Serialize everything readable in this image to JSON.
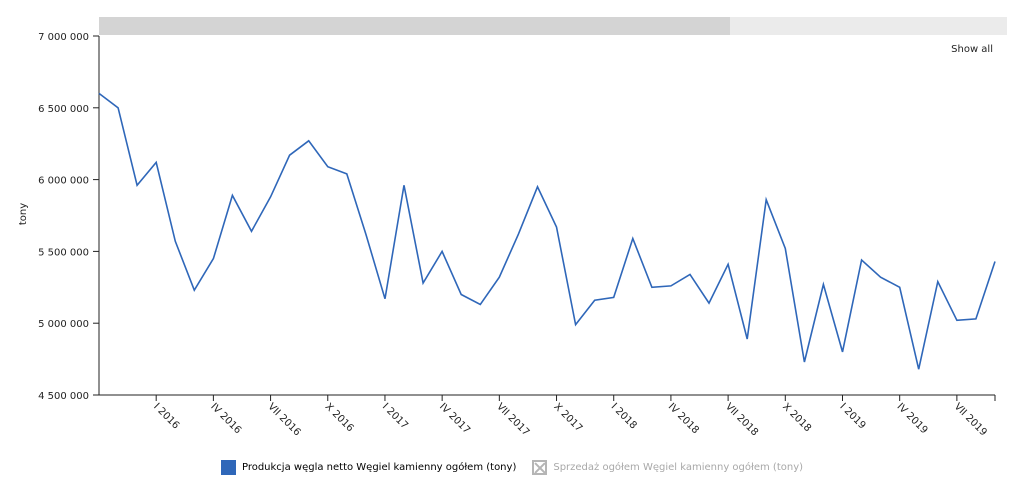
{
  "show_all_label": "Show all",
  "colors": {
    "line": "#2f67b9",
    "scrollbar_track": "#ebebeb",
    "scrollbar_thumb": "#d4d4d4",
    "legend_off": "#b5b5b5"
  },
  "legend": {
    "items": [
      {
        "label": "Produkcja węgla netto Węgiel kamienny ogółem (tony)",
        "active": true
      },
      {
        "label": "Sprzedaż ogółem Węgiel kamienny ogółem (tony)",
        "active": false
      }
    ]
  },
  "chart_data": {
    "type": "line",
    "ylabel": "tony",
    "xlabel": "",
    "ylim": [
      4500000,
      7000000
    ],
    "yticks": [
      {
        "value": 4500000,
        "label": "4 500 000"
      },
      {
        "value": 5000000,
        "label": "5 000 000"
      },
      {
        "value": 5500000,
        "label": "5 500 000"
      },
      {
        "value": 6000000,
        "label": "6 000 000"
      },
      {
        "value": 6500000,
        "label": "6 500 000"
      },
      {
        "value": 7000000,
        "label": "7 000 000"
      }
    ],
    "xticks": [
      {
        "index": 3,
        "label": "I 2016"
      },
      {
        "index": 6,
        "label": "IV 2016"
      },
      {
        "index": 9,
        "label": "VII 2016"
      },
      {
        "index": 12,
        "label": "X 2016"
      },
      {
        "index": 15,
        "label": "I 2017"
      },
      {
        "index": 18,
        "label": "IV 2017"
      },
      {
        "index": 21,
        "label": "VII 2017"
      },
      {
        "index": 24,
        "label": "X 2017"
      },
      {
        "index": 27,
        "label": "I 2018"
      },
      {
        "index": 30,
        "label": "IV 2018"
      },
      {
        "index": 33,
        "label": "VII 2018"
      },
      {
        "index": 36,
        "label": "X 2018"
      },
      {
        "index": 39,
        "label": "I 2019"
      },
      {
        "index": 42,
        "label": "IV 2019"
      },
      {
        "index": 45,
        "label": "VII 2019"
      }
    ],
    "series": [
      {
        "name": "Produkcja węgla netto Węgiel kamienny ogółem (tony)",
        "values": [
          6600000,
          6500000,
          5960000,
          6120000,
          5570000,
          5230000,
          5450000,
          5890000,
          5640000,
          5880000,
          6170000,
          6270000,
          6090000,
          6040000,
          5620000,
          5170000,
          5960000,
          5280000,
          5500000,
          5200000,
          5130000,
          5320000,
          5620000,
          5950000,
          5670000,
          4990000,
          5160000,
          5180000,
          5590000,
          5250000,
          5260000,
          5340000,
          5140000,
          5410000,
          4890000,
          5860000,
          5520000,
          4730000,
          5270000,
          4800000,
          5440000,
          5320000,
          5250000,
          4680000,
          5290000,
          5020000,
          5030000,
          5430000
        ]
      }
    ]
  }
}
